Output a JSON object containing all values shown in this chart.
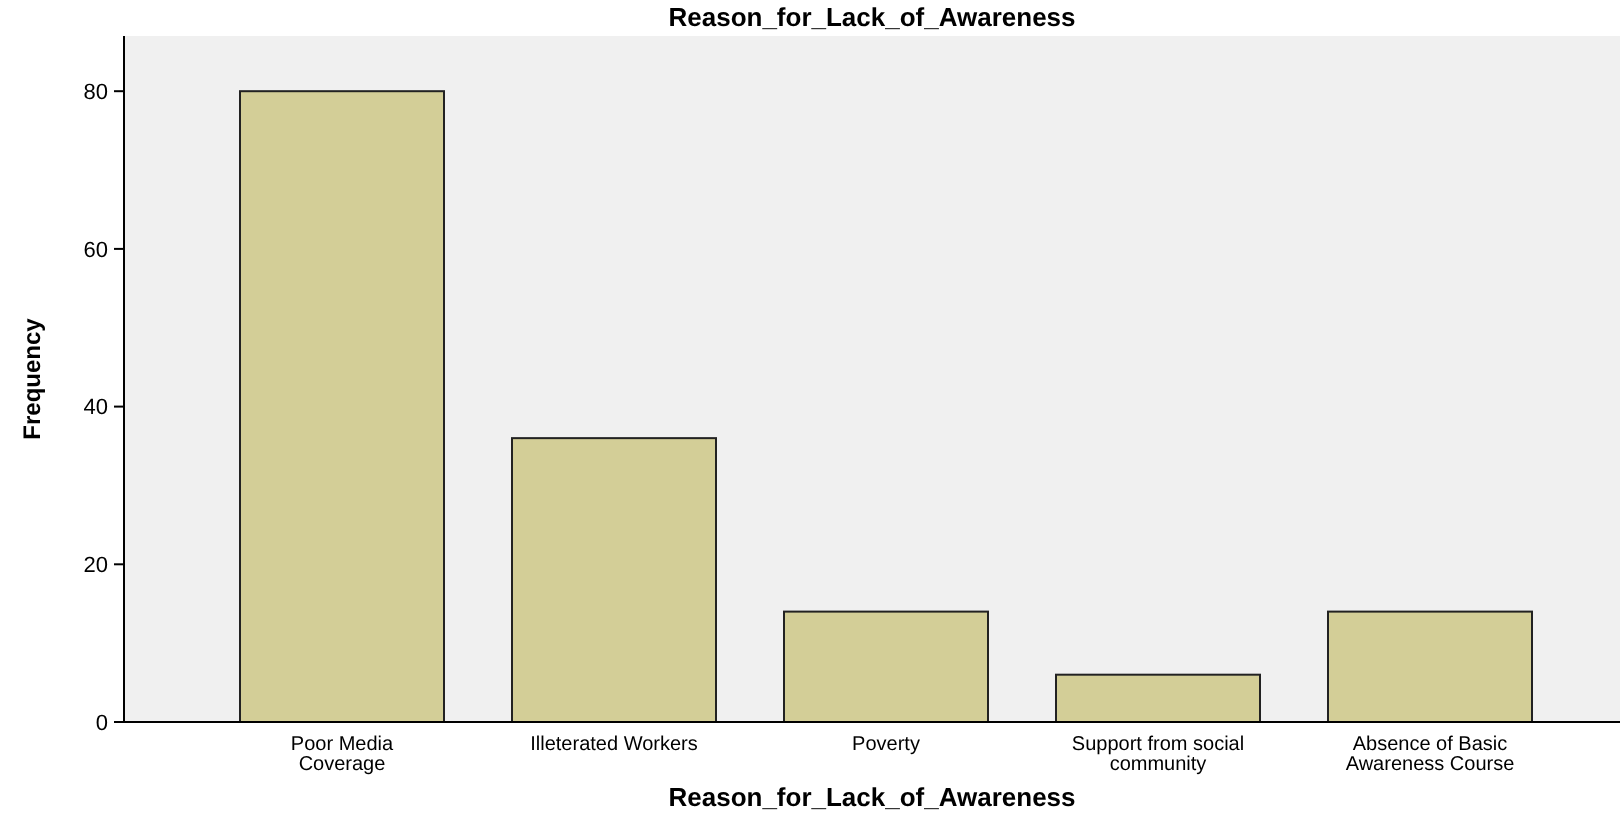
{
  "chart_data": {
    "type": "bar",
    "title": "Reason_for_Lack_of_Awareness",
    "xlabel": "Reason_for_Lack_of_Awareness",
    "ylabel": "Frequency",
    "categories": [
      "Poor Media Coverage",
      "Illeterated Workers",
      "Poverty",
      "Support from social community",
      "Absence of Basic Awareness Course"
    ],
    "values": [
      80,
      36,
      14,
      6,
      14
    ],
    "color": "#d3ce97",
    "ylim": [
      0,
      87
    ],
    "yticks": [
      0,
      20,
      40,
      60,
      80
    ],
    "grid": false
  }
}
